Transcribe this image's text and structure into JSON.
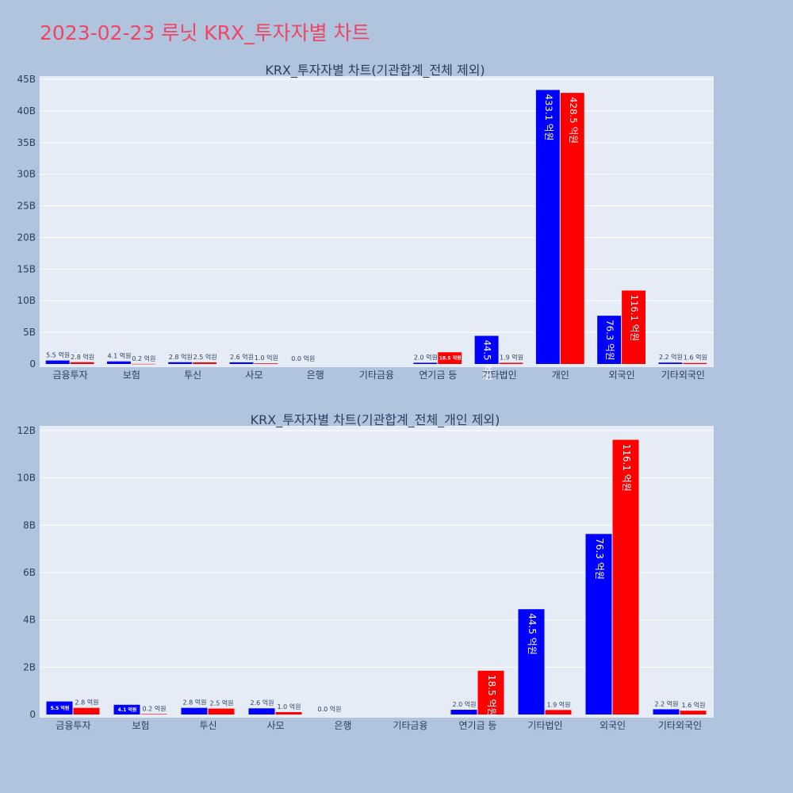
{
  "title": "2023-02-23 루닛 KRX_투자자별 차트",
  "colors": {
    "buy": "#0000ff",
    "sell": "#ff0000",
    "plot_bg": "#e5ecf6",
    "page_bg": "#b0c4de",
    "title": "#ef4565"
  },
  "chart_data": [
    {
      "type": "bar",
      "title": "KRX_투자자별 차트(기관합계_전체 제외)",
      "categories": [
        "금융투자",
        "보험",
        "투신",
        "사모",
        "은행",
        "기타금융",
        "연기금 등",
        "기타법인",
        "개인",
        "외국인",
        "기타외국인"
      ],
      "series": [
        {
          "color": "#0000ff",
          "values": [
            550000000,
            410000000,
            280000000,
            260000000,
            0,
            0,
            200000000,
            4450000000,
            43310000000,
            7630000000,
            220000000
          ],
          "labels": [
            "5.5 억원",
            "4.1 억원",
            "2.8 억원",
            "2.6 억원",
            "0.0 억원",
            "",
            "2.0 억원",
            "44.5 억원",
            "433.1 억원",
            "76.3 억원",
            "2.2 억원"
          ]
        },
        {
          "color": "#ff0000",
          "values": [
            280000000,
            20000000,
            250000000,
            100000000,
            0,
            0,
            1850000000,
            190000000,
            42850000000,
            11610000000,
            160000000
          ],
          "labels": [
            "2.8 억원",
            "0.2 억원",
            "2.5 억원",
            "1.0 억원",
            "",
            "",
            "18.5 억원",
            "1.9 억원",
            "428.5 억원",
            "116.1 억원",
            "1.6 억원"
          ]
        }
      ],
      "yticks": [
        "0",
        "5B",
        "10B",
        "15B",
        "20B",
        "25B",
        "30B",
        "35B",
        "40B",
        "45B"
      ],
      "ylim": [
        0,
        45500000000
      ],
      "grid": true
    },
    {
      "type": "bar",
      "title": "KRX_투자자별 차트(기관합계_전체_개인 제외)",
      "categories": [
        "금융투자",
        "보험",
        "투신",
        "사모",
        "은행",
        "기타금융",
        "연기금 등",
        "기타법인",
        "외국인",
        "기타외국인"
      ],
      "series": [
        {
          "color": "#0000ff",
          "values": [
            550000000,
            410000000,
            280000000,
            260000000,
            0,
            0,
            200000000,
            4450000000,
            7630000000,
            220000000
          ],
          "labels": [
            "5.5 억원",
            "4.1 억원",
            "2.8 억원",
            "2.6 억원",
            "0.0 억원",
            "",
            "2.0 억원",
            "44.5 억원",
            "76.3 억원",
            "2.2 억원"
          ]
        },
        {
          "color": "#ff0000",
          "values": [
            280000000,
            20000000,
            250000000,
            100000000,
            0,
            0,
            1850000000,
            190000000,
            11610000000,
            160000000
          ],
          "labels": [
            "2.8 억원",
            "0.2 억원",
            "2.5 억원",
            "1.0 억원",
            "",
            "",
            "18.5 억원",
            "1.9 억원",
            "116.1 억원",
            "1.6 억원"
          ]
        }
      ],
      "yticks": [
        "0",
        "2B",
        "4B",
        "6B",
        "8B",
        "10B",
        "12B"
      ],
      "ylim": [
        0,
        12200000000
      ],
      "grid": true
    }
  ]
}
